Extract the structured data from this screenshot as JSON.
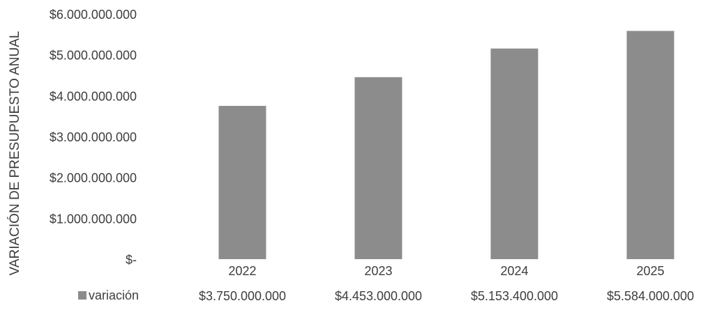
{
  "chart_data": {
    "type": "bar",
    "ylabel": "VARIACIÓN DE PRESUPUESTO ANUAL",
    "categories": [
      "2022",
      "2023",
      "2024",
      "2025"
    ],
    "series": [
      {
        "name": "variación",
        "values": [
          3750000000,
          4453000000,
          5153400000,
          5584000000
        ],
        "value_labels": [
          "$3.750.000.000",
          "$4.453.000.000",
          "$5.153.400.000",
          "$5.584.000.000"
        ]
      }
    ],
    "ylim": [
      0,
      6000000000
    ],
    "yticks": [
      0,
      1000000000,
      2000000000,
      3000000000,
      4000000000,
      5000000000,
      6000000000
    ],
    "ytick_labels": [
      "$-",
      "$1.000.000.000",
      "$2.000.000.000",
      "$3.000.000.000",
      "$4.000.000.000",
      "$5.000.000.000",
      "$6.000.000.000"
    ],
    "grid": false,
    "legend": "bottom-left, inline with data table",
    "colors": {
      "bar": "#8c8c8c",
      "legend_swatch": "#8c8c8c"
    }
  }
}
